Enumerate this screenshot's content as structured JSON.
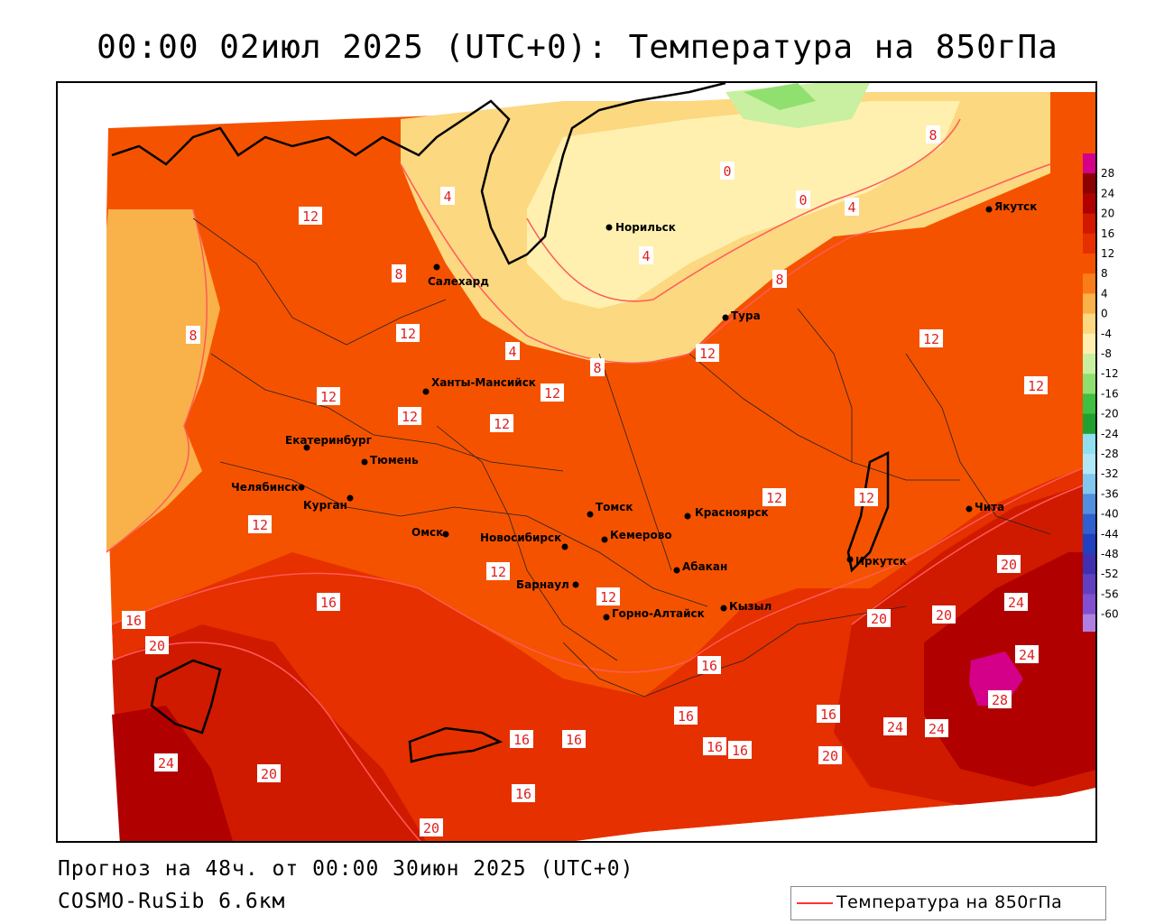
{
  "title": "00:00 02июл 2025 (UTC+0): Температура на 850гПа",
  "forecast_line": "Прогноз на 48ч. от 00:00 30июн 2025 (UTC+0)",
  "model_line": "COSMO-RuSib 6.6км",
  "legend": {
    "label": "Температура на 850гПа",
    "line_color": "#ff3333"
  },
  "colorbar": {
    "ticks": [
      "28",
      "24",
      "20",
      "16",
      "12",
      "8",
      "4",
      "0",
      "-4",
      "-8",
      "-12",
      "-16",
      "-20",
      "-24",
      "-28",
      "-32",
      "-36",
      "-40",
      "-44",
      "-48",
      "-52",
      "-56",
      "-60"
    ],
    "colors": [
      "#d4008a",
      "#8b0000",
      "#b00000",
      "#cf1a00",
      "#e63000",
      "#f55200",
      "#fb7d1a",
      "#f9b14a",
      "#fcd880",
      "#fff0b0",
      "#c8f0a0",
      "#90e070",
      "#40c040",
      "#20a030",
      "#90e0f0",
      "#b0e8f8",
      "#80c8f0",
      "#5090e0",
      "#3060d0",
      "#2040c0",
      "#4030b0",
      "#6040c0",
      "#8050d0",
      "#b080e0"
    ]
  },
  "cities": [
    {
      "name": "Норильск"
    },
    {
      "name": "Якутск"
    },
    {
      "name": "Салехард"
    },
    {
      "name": "Тура"
    },
    {
      "name": "Ханты-Мансийск"
    },
    {
      "name": "Екатеринбург"
    },
    {
      "name": "Тюмень"
    },
    {
      "name": "Челябинск"
    },
    {
      "name": "Курган"
    },
    {
      "name": "Омск"
    },
    {
      "name": "Новосибирск"
    },
    {
      "name": "Томск"
    },
    {
      "name": "Кемерово"
    },
    {
      "name": "Красноярск"
    },
    {
      "name": "Барнаул"
    },
    {
      "name": "Абакан"
    },
    {
      "name": "Горно-Алтайск"
    },
    {
      "name": "Кызыл"
    },
    {
      "name": "Иркутск"
    },
    {
      "name": "Чита"
    }
  ],
  "isotherm_labels": [
    "0",
    "0",
    "4",
    "4",
    "4",
    "4",
    "8",
    "8",
    "8",
    "8",
    "8",
    "12",
    "12",
    "12",
    "12",
    "12",
    "12",
    "12",
    "12",
    "12",
    "12",
    "12",
    "12",
    "12",
    "12",
    "16",
    "16",
    "16",
    "16",
    "16",
    "16",
    "16",
    "16",
    "16",
    "16",
    "20",
    "20",
    "20",
    "20",
    "20",
    "20",
    "20",
    "24",
    "24",
    "24",
    "24",
    "24",
    "28"
  ]
}
